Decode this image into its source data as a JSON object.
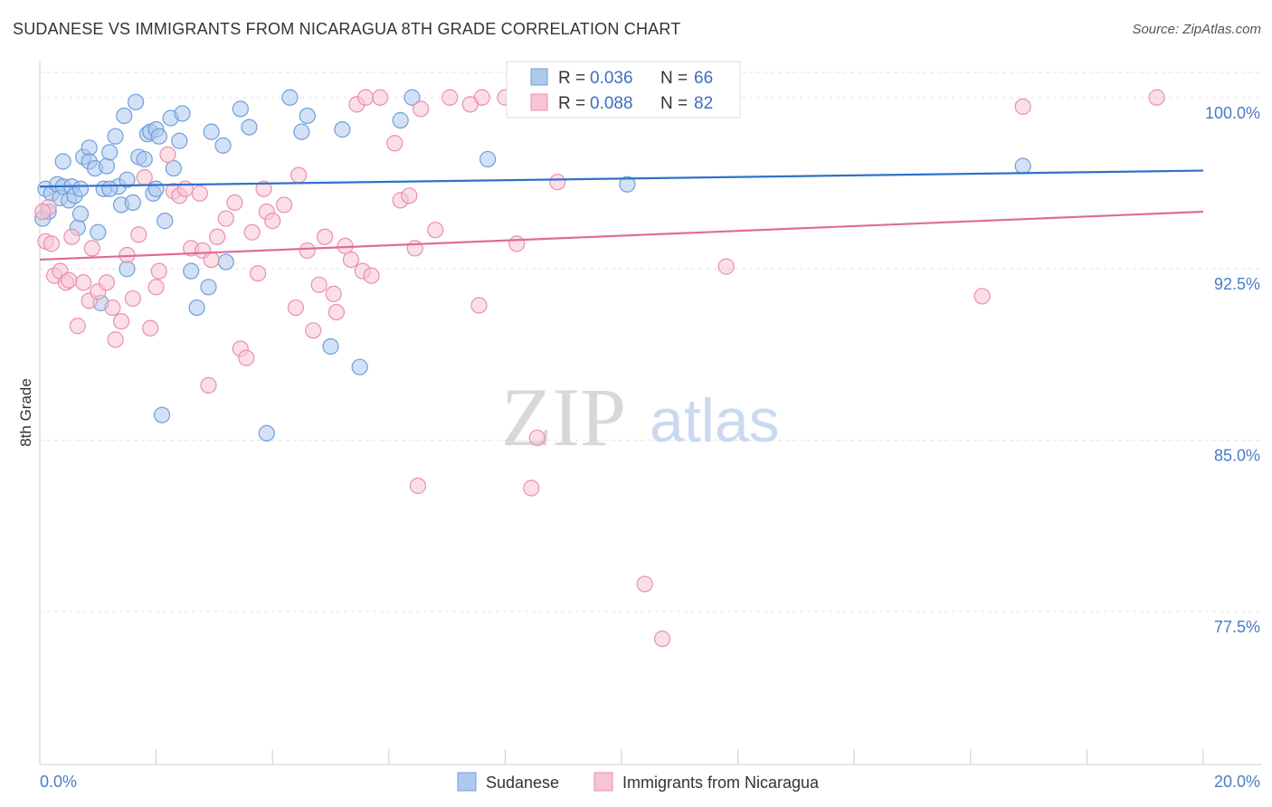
{
  "header": {
    "title": "SUDANESE VS IMMIGRANTS FROM NICARAGUA 8TH GRADE CORRELATION CHART",
    "source": "Source: ZipAtlas.com"
  },
  "watermark": {
    "zip": "ZIP",
    "atlas": "atlas"
  },
  "colors": {
    "blue_fill": "#aec9ee",
    "blue_stroke": "#6f9fdc",
    "blue_line": "#2f72c9",
    "pink_fill": "#f7c4d4",
    "pink_stroke": "#ea8fae",
    "pink_line": "#e06b97",
    "tick_text": "#4a7cc7",
    "grid": "#e3e3e3"
  },
  "legend_top": {
    "rows": [
      {
        "r_label": "R = ",
        "r_value": "0.036",
        "n_label": "N = ",
        "n_value": "66"
      },
      {
        "r_label": "R = ",
        "r_value": "0.088",
        "n_label": "N = ",
        "n_value": "82"
      }
    ]
  },
  "legend_bottom": [
    "Sudanese",
    "Immigrants from Nicaragua"
  ],
  "chart_data": {
    "type": "scatter",
    "title": "SUDANESE VS IMMIGRANTS FROM NICARAGUA 8TH GRADE CORRELATION CHART",
    "xlabel": "",
    "ylabel": "8th Grade",
    "xlim": [
      0,
      20
    ],
    "ylim": [
      70.8,
      101.1
    ],
    "x_tick_labels": [
      "0.0%",
      "20.0%"
    ],
    "y_ticks": [
      100.0,
      92.5,
      85.0,
      77.5
    ],
    "y_tick_labels": [
      "100.0%",
      "92.5%",
      "85.0%",
      "77.5%"
    ],
    "grid": true,
    "legend_placement": "top-center and bottom",
    "series": [
      {
        "name": "Sudanese",
        "color": "#6f9fdc",
        "r": 0.036,
        "n": 66,
        "trend": {
          "x": [
            0,
            20
          ],
          "y": [
            96.1,
            96.8
          ]
        },
        "points": [
          [
            0.1,
            96.0
          ],
          [
            0.2,
            95.8
          ],
          [
            0.3,
            96.2
          ],
          [
            0.35,
            95.6
          ],
          [
            0.4,
            97.2
          ],
          [
            0.4,
            96.1
          ],
          [
            0.5,
            95.5
          ],
          [
            0.55,
            96.1
          ],
          [
            0.6,
            95.7
          ],
          [
            0.65,
            94.3
          ],
          [
            0.7,
            96.0
          ],
          [
            0.7,
            94.9
          ],
          [
            0.75,
            97.4
          ],
          [
            0.85,
            97.8
          ],
          [
            0.85,
            97.2
          ],
          [
            0.95,
            96.9
          ],
          [
            1.0,
            94.1
          ],
          [
            1.1,
            96.0
          ],
          [
            1.15,
            97.0
          ],
          [
            1.2,
            97.6
          ],
          [
            1.3,
            98.3
          ],
          [
            1.35,
            96.1
          ],
          [
            1.4,
            95.3
          ],
          [
            1.45,
            99.2
          ],
          [
            1.5,
            96.4
          ],
          [
            1.6,
            95.4
          ],
          [
            1.65,
            99.8
          ],
          [
            1.7,
            97.4
          ],
          [
            1.8,
            97.3
          ],
          [
            1.85,
            98.4
          ],
          [
            1.9,
            98.5
          ],
          [
            1.95,
            95.8
          ],
          [
            2.0,
            98.6
          ],
          [
            2.05,
            98.3
          ],
          [
            2.1,
            86.1
          ],
          [
            2.15,
            94.6
          ],
          [
            2.25,
            99.1
          ],
          [
            2.3,
            96.9
          ],
          [
            2.4,
            98.1
          ],
          [
            2.45,
            99.3
          ],
          [
            2.6,
            92.4
          ],
          [
            2.7,
            90.8
          ],
          [
            2.9,
            91.7
          ],
          [
            2.95,
            98.5
          ],
          [
            3.15,
            97.9
          ],
          [
            3.2,
            92.8
          ],
          [
            3.45,
            99.5
          ],
          [
            3.6,
            98.7
          ],
          [
            3.9,
            85.3
          ],
          [
            4.3,
            100.0
          ],
          [
            4.5,
            98.5
          ],
          [
            4.6,
            99.2
          ],
          [
            5.0,
            89.1
          ],
          [
            5.2,
            98.6
          ],
          [
            5.5,
            88.2
          ],
          [
            6.2,
            99.0
          ],
          [
            6.4,
            100.0
          ],
          [
            1.05,
            91.0
          ],
          [
            1.5,
            92.5
          ],
          [
            2.0,
            96.0
          ],
          [
            1.2,
            96.0
          ],
          [
            0.15,
            95.0
          ],
          [
            7.7,
            97.3
          ],
          [
            10.1,
            96.2
          ],
          [
            16.9,
            97.0
          ],
          [
            0.05,
            94.7
          ]
        ]
      },
      {
        "name": "Immigrants from Nicaragua",
        "color": "#ea8fae",
        "r": 0.088,
        "n": 82,
        "trend": {
          "x": [
            0,
            20
          ],
          "y": [
            92.9,
            95.0
          ]
        },
        "points": [
          [
            0.1,
            93.7
          ],
          [
            0.15,
            95.2
          ],
          [
            0.25,
            92.2
          ],
          [
            0.35,
            92.4
          ],
          [
            0.45,
            91.9
          ],
          [
            0.55,
            93.9
          ],
          [
            0.65,
            90.0
          ],
          [
            0.75,
            91.9
          ],
          [
            0.85,
            91.1
          ],
          [
            0.9,
            93.4
          ],
          [
            1.0,
            91.5
          ],
          [
            1.15,
            91.9
          ],
          [
            1.25,
            90.8
          ],
          [
            1.3,
            89.4
          ],
          [
            1.4,
            90.2
          ],
          [
            1.5,
            93.1
          ],
          [
            1.6,
            91.2
          ],
          [
            1.7,
            94.0
          ],
          [
            1.8,
            96.5
          ],
          [
            1.9,
            89.9
          ],
          [
            2.0,
            91.7
          ],
          [
            2.05,
            92.4
          ],
          [
            2.2,
            97.5
          ],
          [
            2.3,
            95.9
          ],
          [
            2.4,
            95.7
          ],
          [
            2.5,
            96.0
          ],
          [
            2.6,
            93.4
          ],
          [
            2.75,
            95.8
          ],
          [
            2.8,
            93.3
          ],
          [
            2.9,
            87.4
          ],
          [
            2.95,
            92.9
          ],
          [
            3.05,
            93.9
          ],
          [
            3.2,
            94.7
          ],
          [
            3.35,
            95.4
          ],
          [
            3.45,
            89.0
          ],
          [
            3.55,
            88.6
          ],
          [
            3.65,
            94.1
          ],
          [
            3.75,
            92.3
          ],
          [
            3.85,
            96.0
          ],
          [
            3.9,
            95.0
          ],
          [
            4.0,
            94.6
          ],
          [
            4.2,
            95.3
          ],
          [
            4.4,
            90.8
          ],
          [
            4.45,
            96.6
          ],
          [
            4.6,
            93.3
          ],
          [
            4.7,
            89.8
          ],
          [
            4.8,
            91.8
          ],
          [
            4.9,
            93.9
          ],
          [
            5.05,
            91.4
          ],
          [
            5.1,
            90.6
          ],
          [
            5.25,
            93.5
          ],
          [
            5.35,
            92.9
          ],
          [
            5.45,
            99.7
          ],
          [
            5.55,
            92.4
          ],
          [
            5.6,
            100.0
          ],
          [
            5.7,
            92.2
          ],
          [
            5.85,
            100.0
          ],
          [
            6.1,
            98.0
          ],
          [
            6.2,
            95.5
          ],
          [
            6.35,
            95.7
          ],
          [
            6.45,
            93.4
          ],
          [
            6.5,
            83.0
          ],
          [
            6.55,
            99.5
          ],
          [
            6.8,
            94.2
          ],
          [
            7.05,
            100.0
          ],
          [
            7.6,
            100.0
          ],
          [
            7.4,
            99.7
          ],
          [
            7.55,
            90.9
          ],
          [
            8.0,
            100.0
          ],
          [
            8.2,
            93.6
          ],
          [
            8.55,
            85.1
          ],
          [
            8.45,
            82.9
          ],
          [
            8.9,
            96.3
          ],
          [
            10.4,
            78.7
          ],
          [
            10.7,
            76.3
          ],
          [
            11.8,
            92.6
          ],
          [
            16.2,
            91.3
          ],
          [
            16.9,
            99.6
          ],
          [
            19.2,
            100.0
          ],
          [
            0.05,
            95.0
          ],
          [
            0.2,
            93.6
          ],
          [
            0.5,
            92.0
          ]
        ]
      }
    ]
  }
}
